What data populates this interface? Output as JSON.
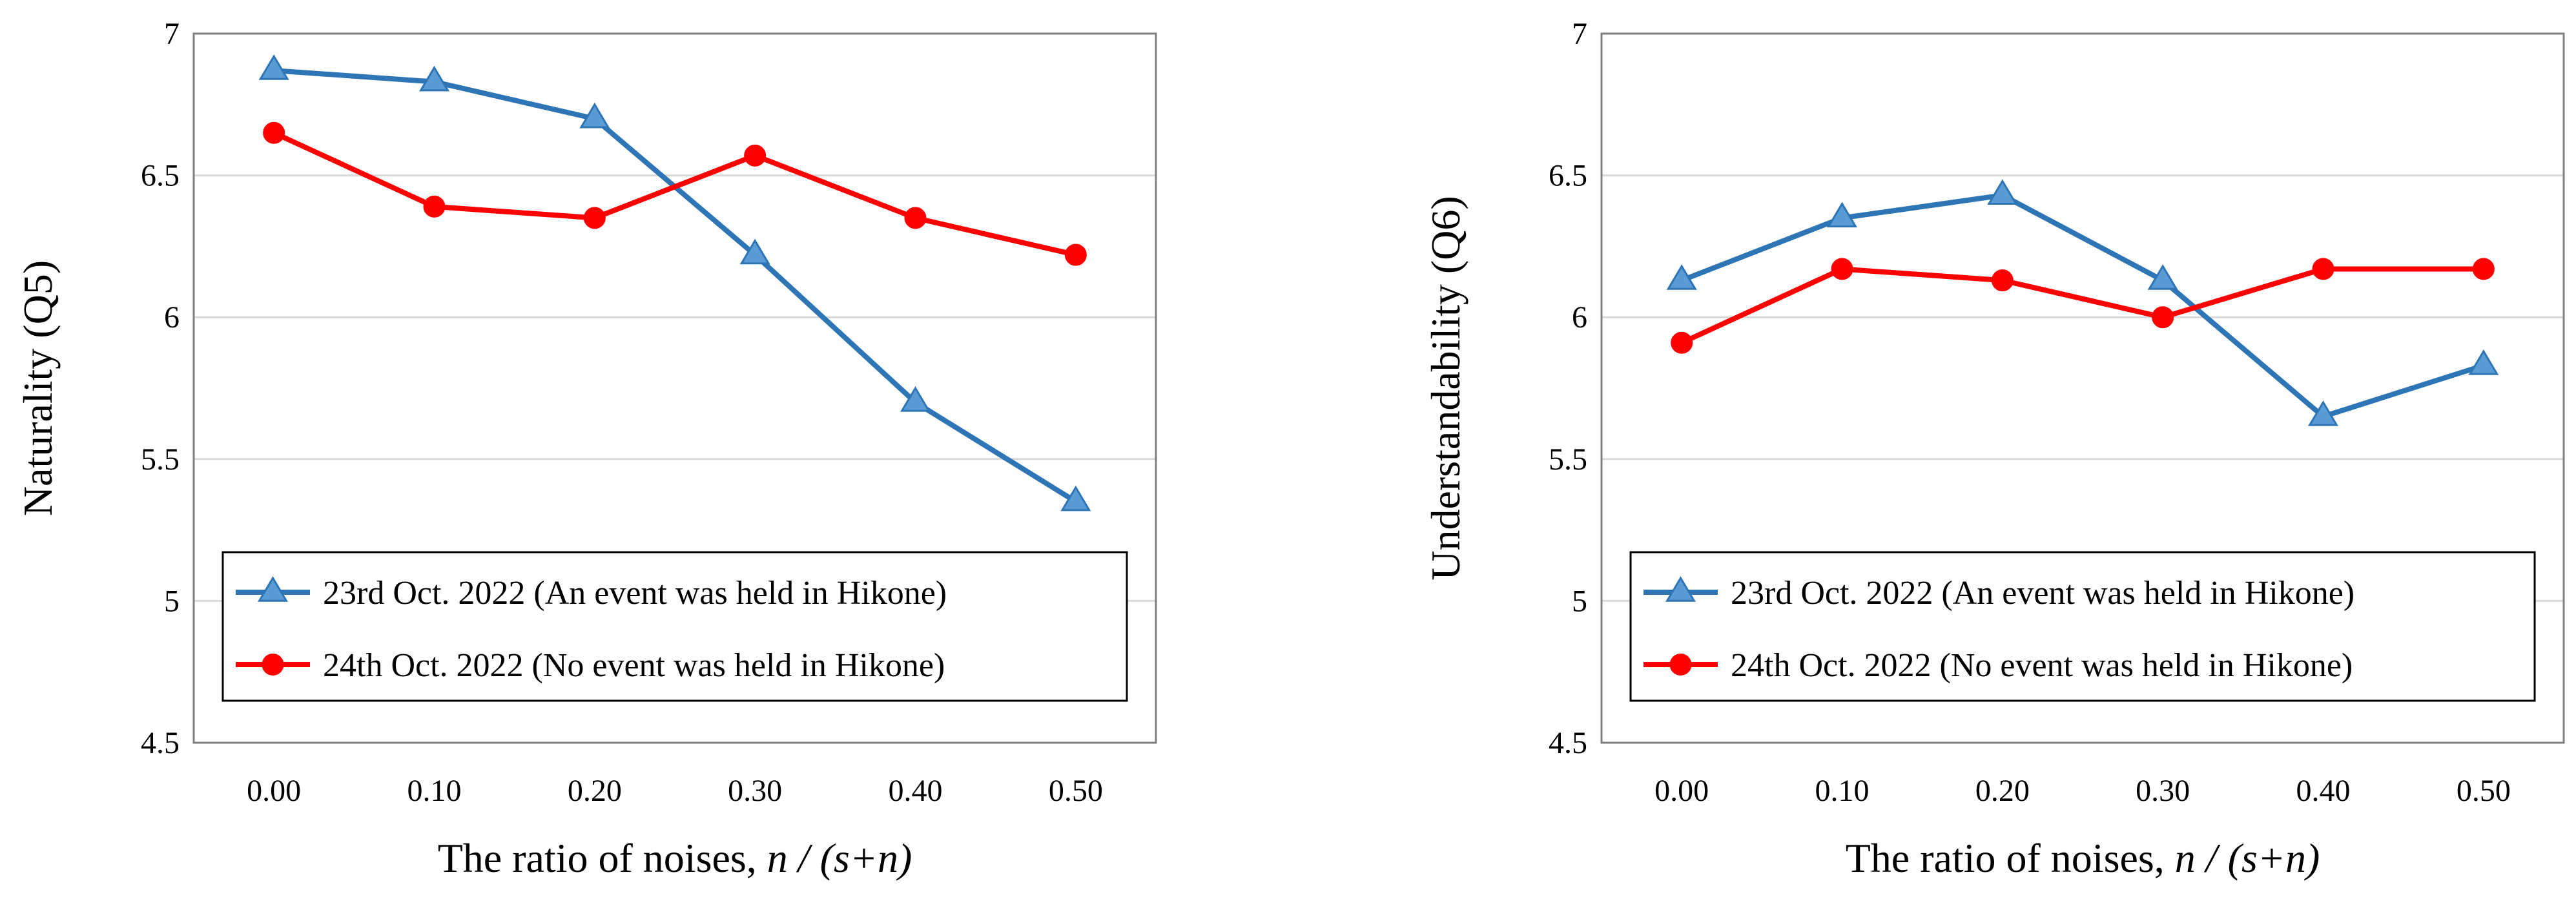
{
  "chart_data": [
    {
      "type": "line",
      "categories": [
        "0.00",
        "0.10",
        "0.20",
        "0.30",
        "0.40",
        "0.50"
      ],
      "xlabel_prefix": "The ratio of noises, ",
      "xlabel_italic": "n / (s+n)",
      "ylabel": "Naturality (Q5)",
      "ylim": [
        4.5,
        7
      ],
      "yticks": [
        "4.5",
        "5",
        "5.5",
        "6",
        "6.5",
        "7"
      ],
      "legend_position": "bottom-left",
      "series": [
        {
          "name": "23rd Oct. 2022 (An event was held in Hikone)",
          "color": "#2e75b6",
          "marker": "triangle",
          "values": [
            6.87,
            6.83,
            6.7,
            6.22,
            5.7,
            5.35
          ]
        },
        {
          "name": "24th Oct. 2022 (No event was held in Hikone)",
          "color": "#ff0000",
          "marker": "circle",
          "values": [
            6.65,
            6.39,
            6.35,
            6.57,
            6.35,
            6.22
          ]
        }
      ]
    },
    {
      "type": "line",
      "categories": [
        "0.00",
        "0.10",
        "0.20",
        "0.30",
        "0.40",
        "0.50"
      ],
      "xlabel_prefix": "The ratio of noises, ",
      "xlabel_italic": "n / (s+n)",
      "ylabel": "Understandability (Q6)",
      "ylim": [
        4.5,
        7
      ],
      "yticks": [
        "4.5",
        "5",
        "5.5",
        "6",
        "6.5",
        "7"
      ],
      "legend_position": "bottom-left",
      "series": [
        {
          "name": "23rd Oct. 2022 (An event was held in Hikone)",
          "color": "#2e75b6",
          "marker": "triangle",
          "values": [
            6.13,
            6.35,
            6.43,
            6.13,
            5.65,
            5.83
          ]
        },
        {
          "name": "24th Oct. 2022 (No event was held in Hikone)",
          "color": "#ff0000",
          "marker": "circle",
          "values": [
            5.91,
            6.17,
            6.13,
            6.0,
            6.17,
            6.17
          ]
        }
      ]
    }
  ]
}
